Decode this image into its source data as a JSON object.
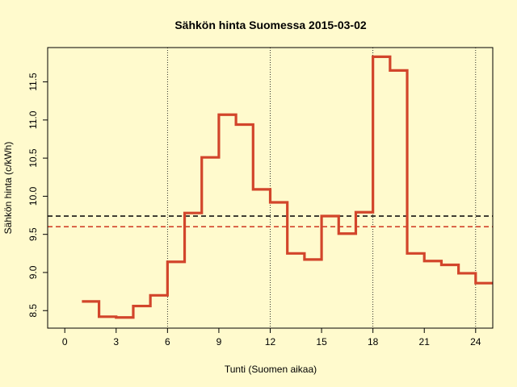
{
  "chart_data": {
    "type": "line",
    "title": "Sähkön hinta Suomessa 2015-03-02",
    "xlabel": "Tunti (Suomen aikaa)",
    "ylabel": "Sähkön hinta (c/kWh)",
    "xlim": [
      -1,
      25
    ],
    "ylim": [
      8.27,
      11.95
    ],
    "x_ticks": [
      0,
      3,
      6,
      9,
      12,
      15,
      18,
      21,
      24
    ],
    "x_tick_labels": [
      "0",
      "3",
      "6",
      "9",
      "12",
      "15",
      "18",
      "21",
      "24"
    ],
    "y_ticks": [
      8.5,
      9.0,
      9.5,
      10.0,
      10.5,
      11.0,
      11.5
    ],
    "y_tick_labels": [
      "8.5",
      "9.0",
      "9.5",
      "10.0",
      "10.5",
      "11.0",
      "11.5"
    ],
    "vertical_lines": [
      6,
      12,
      18,
      24
    ],
    "colors": {
      "background": "#fffacd",
      "series": "#d2452b",
      "mean_line": "#000000",
      "reference_line": "#d2452b"
    },
    "series": [
      {
        "style": "step",
        "x": [
          1,
          2,
          3,
          4,
          5,
          6,
          7,
          8,
          9,
          10,
          11,
          12,
          13,
          14,
          15,
          16,
          17,
          18,
          19,
          20,
          21,
          22,
          23,
          24,
          25
        ],
        "values": [
          8.62,
          8.42,
          8.41,
          8.56,
          8.7,
          9.14,
          9.78,
          10.51,
          11.07,
          10.94,
          10.09,
          9.92,
          9.25,
          9.17,
          9.74,
          9.51,
          9.79,
          11.83,
          11.65,
          9.25,
          9.15,
          9.1,
          8.99,
          8.86,
          8.86
        ]
      }
    ],
    "horizontal_lines": [
      {
        "y": 9.74,
        "style": "dashed",
        "color": "#000000"
      },
      {
        "y": 9.6,
        "style": "dashed",
        "color": "#d2452b"
      }
    ]
  }
}
